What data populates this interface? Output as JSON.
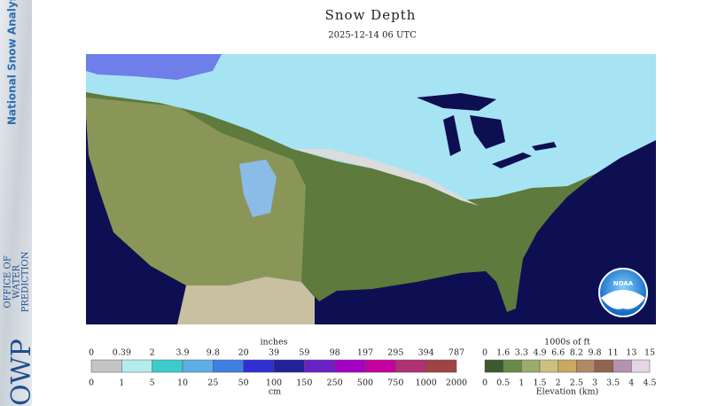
{
  "sidebar": {
    "title": "National Snow Analysis",
    "org_abbr": "OWP",
    "org_name": [
      "OFFICE OF",
      "WATER",
      "PREDICTION"
    ]
  },
  "header": {
    "title": "Snow Depth",
    "timestamp": "2025-12-14 06 UTC"
  },
  "noaa_logo": {
    "text": "NOAA"
  },
  "legend_snow": {
    "top_unit": "inches",
    "top_labels": [
      "0",
      "0.39",
      "2",
      "3.9",
      "9.8",
      "20",
      "39",
      "59",
      "98",
      "197",
      "295",
      "394",
      "787"
    ],
    "bottom_labels": [
      "0",
      "1",
      "5",
      "10",
      "25",
      "50",
      "100",
      "150",
      "250",
      "500",
      "750",
      "1000",
      "2000"
    ],
    "bottom_unit": "cm",
    "colors": [
      "#c4c4c4",
      "#b4ecec",
      "#3ccccc",
      "#5caee6",
      "#3f7fe0",
      "#2f2fd2",
      "#22229a",
      "#6a22c6",
      "#a200c2",
      "#c400a2",
      "#b03074",
      "#9e4444"
    ]
  },
  "legend_elev": {
    "top_unit": "1000s of ft",
    "top_labels": [
      "0",
      "1.6",
      "3.3",
      "4.9",
      "6.6",
      "8.2",
      "9.8",
      "11",
      "13",
      "15"
    ],
    "bottom_labels": [
      "0",
      "0.5",
      "1",
      "1.5",
      "2",
      "2.5",
      "3",
      "3.5",
      "4",
      "4.5"
    ],
    "bottom_unit": "Elevation (km)",
    "colors": [
      "#3c5a2c",
      "#6a8a4a",
      "#9cac6c",
      "#cac27c",
      "#caa862",
      "#b08a62",
      "#926450",
      "#b492b2",
      "#e4d6e4"
    ]
  }
}
